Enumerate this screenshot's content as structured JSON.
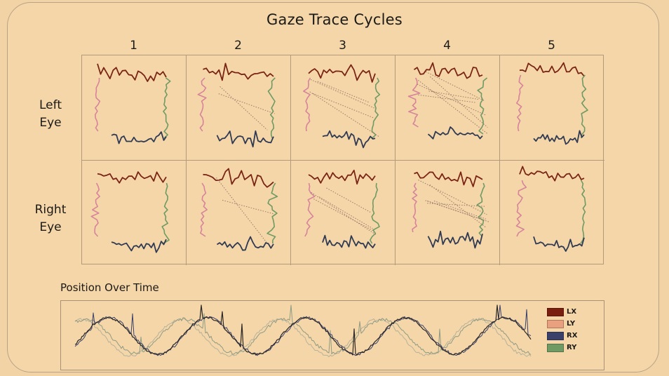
{
  "title": "Gaze Trace Cycles",
  "chart_data": [
    {
      "type": "scatter",
      "title": "Gaze Trace Cycles",
      "columns": [
        "1",
        "2",
        "3",
        "4",
        "5"
      ],
      "rows": [
        "Left\nEye",
        "Right\nEye"
      ],
      "grid": true,
      "note": "Each panel shows a roughly rectangular gaze trace; top edge dark red, left edge pink, right edge green, bottom edge navy. Cycles 2-4 include dotted saccade lines crossing the panel."
    },
    {
      "type": "line",
      "title": "Position Over Time",
      "series": [
        {
          "name": "LX",
          "shape": "black oscillating trace with sharp spikes",
          "periods": 4.6
        },
        {
          "name": "LY",
          "shape": "phase-shifted oscillation",
          "periods": 4.6
        },
        {
          "name": "RX",
          "shape": "oscillation following LX",
          "periods": 4.6
        },
        {
          "name": "RY",
          "shape": "grey-green phase-shifted oscillation",
          "periods": 4.6
        }
      ],
      "legend": "right",
      "grid": false
    }
  ],
  "column_labels": [
    "1",
    "2",
    "3",
    "4",
    "5"
  ],
  "row_labels": [
    {
      "line1": "Left",
      "line2": "Eye"
    },
    {
      "line1": "Right",
      "line2": "Eye"
    }
  ],
  "timeseries": {
    "title": "Position Over Time"
  },
  "legend": [
    {
      "label": "LX",
      "color": "#7a1f10"
    },
    {
      "label": "LY",
      "color": "#e8a07e"
    },
    {
      "label": "RX",
      "color": "#39406a"
    },
    {
      "label": "RY",
      "color": "#6f9a63"
    }
  ],
  "trace_colors": {
    "top": "#7a2514",
    "left": "#d7849a",
    "right": "#6f9a63",
    "bottom": "#2f3a52",
    "saccade": "#9a7a6a"
  }
}
